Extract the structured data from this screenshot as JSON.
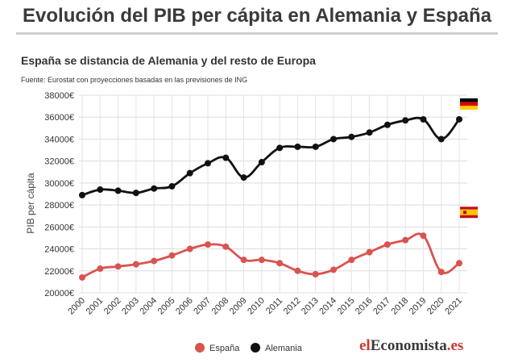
{
  "title": "Evolución del PIB per cápita en Alemania y España",
  "subtitle": "España se distancia de Alemania y del resto de Europa",
  "source": "Fuente: Eurostat con proyecciones basadas en las previsiones de ING",
  "brand": {
    "pre": "el",
    "mid": "Economista",
    "post": ".es"
  },
  "chart_data": {
    "type": "line",
    "ylabel": "PIB per cápita",
    "ylim": [
      20000,
      38000
    ],
    "yticks": [
      20000,
      22000,
      24000,
      26000,
      28000,
      30000,
      32000,
      34000,
      36000,
      38000
    ],
    "ytick_labels": [
      "20000€",
      "22000€",
      "24000€",
      "26000€",
      "28000€",
      "30000€",
      "32000€",
      "34000€",
      "36000€",
      "38000€"
    ],
    "categories": [
      "2000",
      "2001",
      "2002",
      "2003",
      "2004",
      "2005",
      "2006",
      "2007",
      "2008",
      "2009",
      "2010",
      "2011",
      "2012",
      "2013",
      "2014",
      "2015",
      "2016",
      "2017",
      "2018",
      "2019",
      "2020",
      "2021"
    ],
    "grid": true,
    "legend_position": "bottom",
    "series": [
      {
        "name": "España",
        "color": "#d9534f",
        "flag": "spain-flag-icon",
        "values": [
          21400,
          22200,
          22400,
          22600,
          22900,
          23400,
          24000,
          24400,
          24200,
          23000,
          23000,
          22700,
          22000,
          21700,
          22100,
          23000,
          23700,
          24400,
          24800,
          25200,
          21900,
          22700
        ]
      },
      {
        "name": "Alemania",
        "color": "#111111",
        "flag": "germany-flag-icon",
        "values": [
          28900,
          29400,
          29300,
          29100,
          29500,
          29700,
          30900,
          31800,
          32300,
          30500,
          31900,
          33200,
          33300,
          33300,
          34000,
          34200,
          34600,
          35300,
          35700,
          35800,
          34000,
          35800
        ]
      }
    ]
  }
}
